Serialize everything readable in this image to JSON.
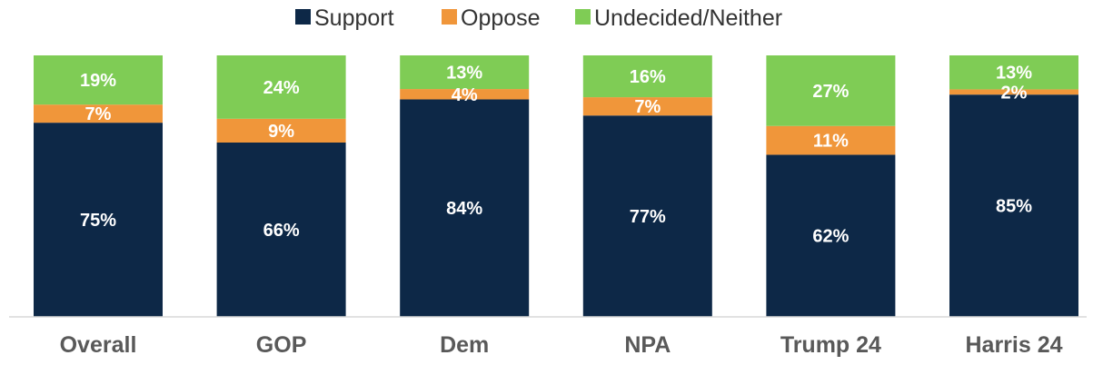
{
  "chart_data": {
    "type": "bar",
    "stacked": true,
    "categories": [
      "Overall",
      "GOP",
      "Dem",
      "NPA",
      "Trump 24",
      "Harris 24"
    ],
    "series": [
      {
        "name": "Support",
        "values": [
          75,
          66,
          84,
          77,
          62,
          85
        ],
        "labels": [
          "75%",
          "66%",
          "84%",
          "77%",
          "62%",
          "85%"
        ],
        "color": "#0d2847"
      },
      {
        "name": "Oppose",
        "values": [
          7,
          9,
          4,
          7,
          11,
          2
        ],
        "labels": [
          "7%",
          "9%",
          "4%",
          "7%",
          "11%",
          "2%"
        ],
        "color": "#f0963a"
      },
      {
        "name": "Undecided/Neither",
        "values": [
          19,
          24,
          13,
          16,
          27,
          13
        ],
        "labels": [
          "19%",
          "24%",
          "13%",
          "16%",
          "27%",
          "13%"
        ],
        "color": "#7fcc55"
      }
    ],
    "ylim": [
      0,
      100
    ],
    "legend_position": "top-center",
    "grid": false
  }
}
